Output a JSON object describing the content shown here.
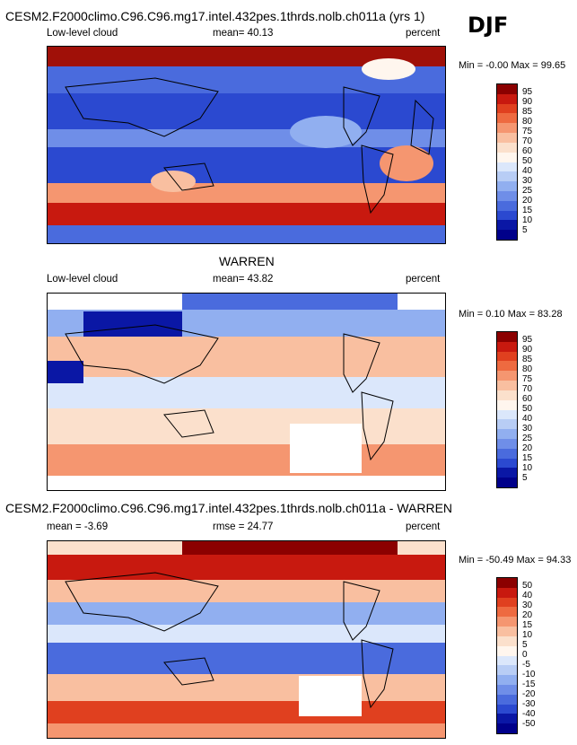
{
  "season": "DJF",
  "panels": [
    {
      "title": "CESM2.F2000climo.C96.C96.mg17.intel.432pes.1thrds.nolb.ch011a (yrs 1)",
      "left_label": "Low-level cloud",
      "stat": "mean=  40.13",
      "units": "percent",
      "minmax": "Min =  -0.00 Max =  99.65"
    },
    {
      "title": "WARREN",
      "left_label": "Low-level cloud",
      "stat": "mean=  43.82",
      "units": "percent",
      "minmax": "Min =   0.10 Max =  83.28"
    },
    {
      "title": "CESM2.F2000climo.C96.C96.mg17.intel.432pes.1thrds.nolb.ch011a - WARREN",
      "left_label": "mean =  -3.69",
      "stat": "rmse =  24.77",
      "units": "percent",
      "minmax": "Min = -50.49 Max =  94.33"
    }
  ],
  "colorbars": {
    "abs_levels": [
      "95",
      "90",
      "85",
      "80",
      "75",
      "70",
      "60",
      "50",
      "40",
      "30",
      "25",
      "20",
      "15",
      "10",
      "5"
    ],
    "abs_colors": [
      "#8b0000",
      "#c8190f",
      "#e0401f",
      "#ee6a40",
      "#f59670",
      "#f9bfa0",
      "#fbe0cc",
      "#fff6ee",
      "#dbe7fb",
      "#b8cdf5",
      "#91aff0",
      "#6f8ee8",
      "#4a6bdd",
      "#2b49d0",
      "#0a17a5",
      "#00008a"
    ],
    "diff_levels": [
      "50",
      "40",
      "30",
      "20",
      "15",
      "10",
      "5",
      "0",
      "-5",
      "-10",
      "-15",
      "-20",
      "-30",
      "-40",
      "-50"
    ],
    "diff_colors": [
      "#8b0000",
      "#c8190f",
      "#e0401f",
      "#ee6a40",
      "#f59670",
      "#f9bfa0",
      "#fbe0cc",
      "#fff6ee",
      "#dbe7fb",
      "#b8cdf5",
      "#91aff0",
      "#6f8ee8",
      "#4a6bdd",
      "#2b49d0",
      "#0a17a5",
      "#00008a"
    ]
  }
}
